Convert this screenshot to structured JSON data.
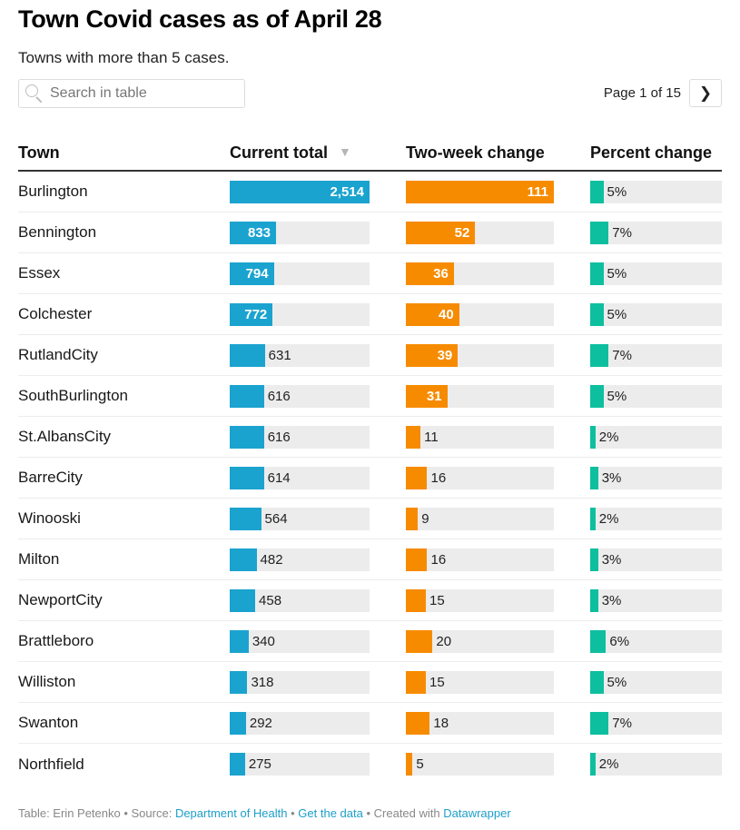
{
  "header": {
    "title": "Town Covid cases as of April 28",
    "subtitle": "Towns with more than 5 cases."
  },
  "search": {
    "placeholder": "Search in table",
    "value": "",
    "icon": "search-icon"
  },
  "pagination": {
    "label": "Page 1 of 15",
    "current_page": 1,
    "total_pages": 15,
    "next_icon": "chevron-right-icon"
  },
  "colors": {
    "total_bar": "#1ba3cf",
    "change_bar": "#f78b00",
    "pct_bar": "#0dbf9f",
    "track": "#ececec",
    "link": "#1d9fc9"
  },
  "chart_data": {
    "type": "table",
    "title": "Town Covid cases as of April 28",
    "subtitle": "Towns with more than 5 cases.",
    "columns": [
      "Town",
      "Current total",
      "Two-week change",
      "Percent change"
    ],
    "sorted_by": "Current total",
    "sort_direction": "descending",
    "scales": {
      "current_total_max": 2514,
      "two_week_change_max": 111,
      "percent_change_max": 50
    },
    "rows": [
      {
        "town": "Burlington",
        "current_total": 2514,
        "current_total_label": "2,514",
        "two_week_change": 111,
        "two_week_change_label": "111",
        "percent_change": 5,
        "percent_change_label": "5%"
      },
      {
        "town": "Bennington",
        "current_total": 833,
        "current_total_label": "833",
        "two_week_change": 52,
        "two_week_change_label": "52",
        "percent_change": 7,
        "percent_change_label": "7%"
      },
      {
        "town": "Essex",
        "current_total": 794,
        "current_total_label": "794",
        "two_week_change": 36,
        "two_week_change_label": "36",
        "percent_change": 5,
        "percent_change_label": "5%"
      },
      {
        "town": "Colchester",
        "current_total": 772,
        "current_total_label": "772",
        "two_week_change": 40,
        "two_week_change_label": "40",
        "percent_change": 5,
        "percent_change_label": "5%"
      },
      {
        "town": "RutlandCity",
        "current_total": 631,
        "current_total_label": "631",
        "two_week_change": 39,
        "two_week_change_label": "39",
        "percent_change": 7,
        "percent_change_label": "7%"
      },
      {
        "town": "SouthBurlington",
        "current_total": 616,
        "current_total_label": "616",
        "two_week_change": 31,
        "two_week_change_label": "31",
        "percent_change": 5,
        "percent_change_label": "5%"
      },
      {
        "town": "St.AlbansCity",
        "current_total": 616,
        "current_total_label": "616",
        "two_week_change": 11,
        "two_week_change_label": "11",
        "percent_change": 2,
        "percent_change_label": "2%"
      },
      {
        "town": "BarreCity",
        "current_total": 614,
        "current_total_label": "614",
        "two_week_change": 16,
        "two_week_change_label": "16",
        "percent_change": 3,
        "percent_change_label": "3%"
      },
      {
        "town": "Winooski",
        "current_total": 564,
        "current_total_label": "564",
        "two_week_change": 9,
        "two_week_change_label": "9",
        "percent_change": 2,
        "percent_change_label": "2%"
      },
      {
        "town": "Milton",
        "current_total": 482,
        "current_total_label": "482",
        "two_week_change": 16,
        "two_week_change_label": "16",
        "percent_change": 3,
        "percent_change_label": "3%"
      },
      {
        "town": "NewportCity",
        "current_total": 458,
        "current_total_label": "458",
        "two_week_change": 15,
        "two_week_change_label": "15",
        "percent_change": 3,
        "percent_change_label": "3%"
      },
      {
        "town": "Brattleboro",
        "current_total": 340,
        "current_total_label": "340",
        "two_week_change": 20,
        "two_week_change_label": "20",
        "percent_change": 6,
        "percent_change_label": "6%"
      },
      {
        "town": "Williston",
        "current_total": 318,
        "current_total_label": "318",
        "two_week_change": 15,
        "two_week_change_label": "15",
        "percent_change": 5,
        "percent_change_label": "5%"
      },
      {
        "town": "Swanton",
        "current_total": 292,
        "current_total_label": "292",
        "two_week_change": 18,
        "two_week_change_label": "18",
        "percent_change": 7,
        "percent_change_label": "7%"
      },
      {
        "town": "Northfield",
        "current_total": 275,
        "current_total_label": "275",
        "two_week_change": 5,
        "two_week_change_label": "5",
        "percent_change": 2,
        "percent_change_label": "2%"
      }
    ]
  },
  "footer": {
    "table_credit": "Table: Erin Petenko",
    "separator": " • ",
    "source_prefix": "Source: ",
    "source_link": "Department of Health",
    "data_link": "Get the data",
    "created_prefix": "Created with ",
    "created_link": "Datawrapper"
  }
}
